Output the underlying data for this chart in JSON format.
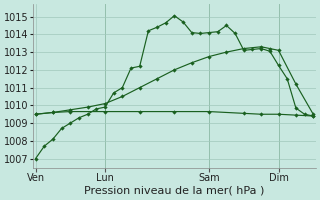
{
  "bg_color": "#c8e8e0",
  "grid_color": "#a0c8bc",
  "line_color": "#1a6020",
  "title": "Pression niveau de la mer( hPa )",
  "tick_fontsize": 7,
  "title_fontsize": 8,
  "ylim": [
    1006.5,
    1015.7
  ],
  "yticks": [
    1007,
    1008,
    1009,
    1010,
    1011,
    1012,
    1013,
    1014,
    1015
  ],
  "day_labels": [
    "Ven",
    "Lun",
    "Sam",
    "Dim"
  ],
  "day_positions": [
    0,
    8,
    20,
    28
  ],
  "vline_positions": [
    8,
    20,
    28
  ],
  "s1_x": [
    0,
    1,
    2,
    3,
    4,
    5,
    6,
    7,
    8,
    9,
    10,
    11,
    12,
    13,
    14,
    15,
    16,
    17,
    18,
    19,
    20,
    21,
    22,
    23,
    24,
    25,
    26,
    27,
    28,
    29,
    30,
    31,
    32
  ],
  "s1_y": [
    1007.0,
    1007.7,
    1008.1,
    1008.7,
    1009.0,
    1009.3,
    1009.5,
    1009.8,
    1009.9,
    1010.7,
    1011.0,
    1012.1,
    1012.2,
    1014.2,
    1014.4,
    1014.65,
    1015.05,
    1014.7,
    1014.1,
    1014.05,
    1014.1,
    1014.15,
    1014.5,
    1014.05,
    1013.1,
    1013.15,
    1013.2,
    1013.05,
    1012.25,
    1011.5,
    1009.85,
    1009.5,
    1009.4
  ],
  "s2_x": [
    0,
    2,
    4,
    6,
    8,
    10,
    12,
    14,
    16,
    18,
    20,
    22,
    24,
    26,
    27,
    28,
    30,
    32
  ],
  "s2_y": [
    1009.5,
    1009.6,
    1009.75,
    1009.9,
    1010.1,
    1010.5,
    1011.0,
    1011.5,
    1012.0,
    1012.4,
    1012.75,
    1013.0,
    1013.2,
    1013.3,
    1013.2,
    1013.1,
    1011.2,
    1009.5
  ],
  "s3_x": [
    0,
    2,
    4,
    8,
    12,
    16,
    20,
    24,
    26,
    28,
    30,
    32
  ],
  "s3_y": [
    1009.5,
    1009.6,
    1009.65,
    1009.65,
    1009.65,
    1009.65,
    1009.65,
    1009.55,
    1009.5,
    1009.5,
    1009.45,
    1009.4
  ]
}
